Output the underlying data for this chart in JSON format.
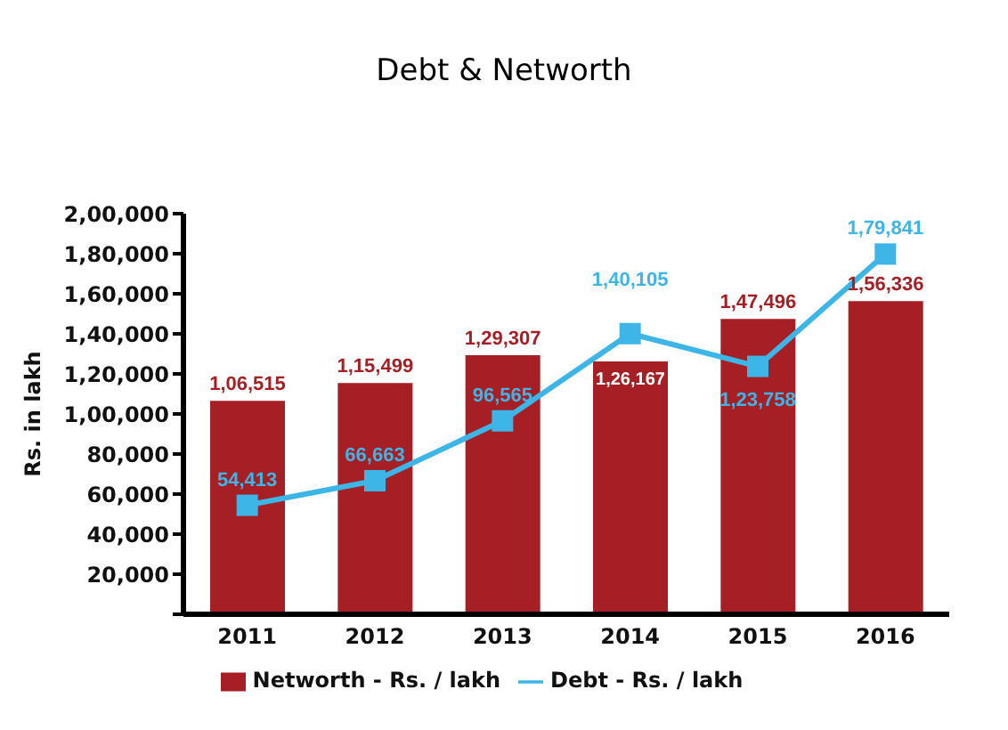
{
  "chart_data": {
    "type": "bar",
    "title": "Debt & Networth",
    "ylabel": "Rs. in lakh",
    "categories": [
      "2011",
      "2012",
      "2013",
      "2014",
      "2015",
      "2016"
    ],
    "series": [
      {
        "name": "Networth - Rs. / lakh",
        "color": "#a51f24",
        "values": [
          106515,
          115499,
          129307,
          126167,
          147496,
          156336
        ],
        "value_labels": [
          "1,06,515",
          "1,15,499",
          "1,29,307",
          "1,26,167",
          "1,47,496",
          "1,56,336"
        ]
      },
      {
        "name": "Debt - Rs. / lakh",
        "type": "line",
        "color": "#3db5e6",
        "values": [
          54413,
          66663,
          96565,
          140105,
          123758,
          179841
        ],
        "value_labels": [
          "54,413",
          "66,663",
          "96,565",
          "1,40,105",
          "1,23,758",
          "1,79,841"
        ],
        "marker": "square"
      }
    ],
    "ylim": [
      0,
      200000
    ],
    "yticks": [
      {
        "value": 0,
        "label": null
      },
      {
        "value": 20000,
        "label": "20,000"
      },
      {
        "value": 40000,
        "label": "40,000"
      },
      {
        "value": 60000,
        "label": "60,000"
      },
      {
        "value": 80000,
        "label": "80,000"
      },
      {
        "value": 100000,
        "label": "1,00,000"
      },
      {
        "value": 120000,
        "label": "1,20,000"
      },
      {
        "value": 140000,
        "label": "1,40,000"
      },
      {
        "value": 160000,
        "label": "1,60,000"
      },
      {
        "value": 180000,
        "label": "1,80,000"
      },
      {
        "value": 200000,
        "label": "2,00,000"
      }
    ],
    "grid": false,
    "legend": "bottom"
  }
}
